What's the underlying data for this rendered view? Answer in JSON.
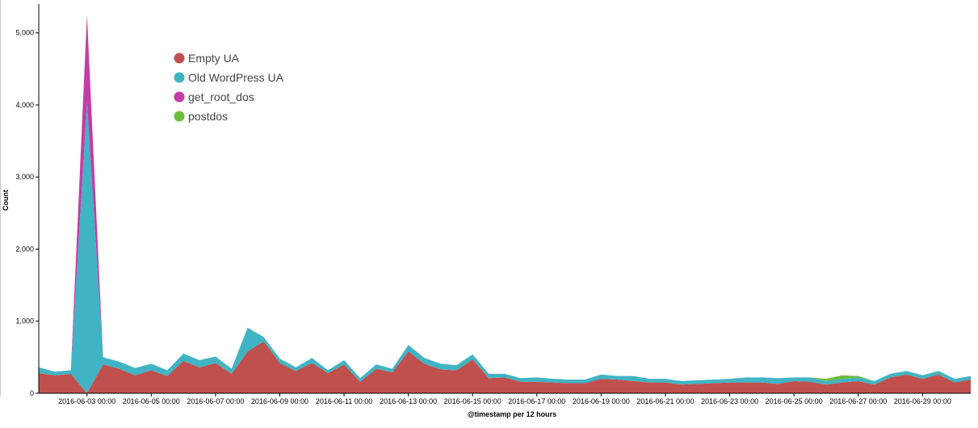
{
  "chart_data": {
    "type": "area",
    "stacked": true,
    "xlabel": "@timestamp per 12 hours",
    "ylabel": "Count",
    "ylim": [
      0,
      5400
    ],
    "grid": false,
    "legend_placement": "top-left",
    "y_ticks": [
      {
        "value": 0,
        "label": "0"
      },
      {
        "value": 1000,
        "label": "1,000"
      },
      {
        "value": 2000,
        "label": "2,000"
      },
      {
        "value": 3000,
        "label": "3,000"
      },
      {
        "value": 4000,
        "label": "4,000"
      },
      {
        "value": 5000,
        "label": "5,000"
      }
    ],
    "x_tick_labels": [
      "2016-06-03 00:00",
      "2016-06-05 00:00",
      "2016-06-07 00:00",
      "2016-06-09 00:00",
      "2016-06-11 00:00",
      "2016-06-13 00:00",
      "2016-06-15 00:00",
      "2016-06-17 00:00",
      "2016-06-19 00:00",
      "2016-06-21 00:00",
      "2016-06-23 00:00",
      "2016-06-25 00:00",
      "2016-06-27 00:00",
      "2016-06-29 00:00"
    ],
    "x": [
      "2016-06-01 12:00",
      "2016-06-02 00:00",
      "2016-06-02 12:00",
      "2016-06-03 00:00",
      "2016-06-03 12:00",
      "2016-06-04 00:00",
      "2016-06-04 12:00",
      "2016-06-05 00:00",
      "2016-06-05 12:00",
      "2016-06-06 00:00",
      "2016-06-06 12:00",
      "2016-06-07 00:00",
      "2016-06-07 12:00",
      "2016-06-08 00:00",
      "2016-06-08 12:00",
      "2016-06-09 00:00",
      "2016-06-09 12:00",
      "2016-06-10 00:00",
      "2016-06-10 12:00",
      "2016-06-11 00:00",
      "2016-06-11 12:00",
      "2016-06-12 00:00",
      "2016-06-12 12:00",
      "2016-06-13 00:00",
      "2016-06-13 12:00",
      "2016-06-14 00:00",
      "2016-06-14 12:00",
      "2016-06-15 00:00",
      "2016-06-15 12:00",
      "2016-06-16 00:00",
      "2016-06-16 12:00",
      "2016-06-17 00:00",
      "2016-06-17 12:00",
      "2016-06-18 00:00",
      "2016-06-18 12:00",
      "2016-06-19 00:00",
      "2016-06-19 12:00",
      "2016-06-20 00:00",
      "2016-06-20 12:00",
      "2016-06-21 00:00",
      "2016-06-21 12:00",
      "2016-06-22 00:00",
      "2016-06-22 12:00",
      "2016-06-23 00:00",
      "2016-06-23 12:00",
      "2016-06-24 00:00",
      "2016-06-24 12:00",
      "2016-06-25 00:00",
      "2016-06-25 12:00",
      "2016-06-26 00:00",
      "2016-06-26 12:00",
      "2016-06-27 00:00",
      "2016-06-27 12:00",
      "2016-06-28 00:00",
      "2016-06-28 12:00",
      "2016-06-29 00:00",
      "2016-06-29 12:00",
      "2016-06-30 00:00",
      "2016-06-30 12:00"
    ],
    "series": [
      {
        "name": "Empty UA",
        "color": "#c0504d",
        "values": [
          280,
          250,
          270,
          0,
          400,
          340,
          250,
          320,
          240,
          450,
          360,
          420,
          270,
          580,
          720,
          420,
          310,
          420,
          280,
          400,
          160,
          340,
          290,
          580,
          410,
          330,
          320,
          470,
          210,
          220,
          160,
          160,
          150,
          140,
          140,
          200,
          190,
          170,
          150,
          150,
          120,
          130,
          140,
          150,
          150,
          150,
          130,
          170,
          160,
          120,
          150,
          170,
          120,
          220,
          260,
          200,
          260,
          150,
          190
        ]
      },
      {
        "name": "Old WordPress UA",
        "color": "#40b4c4",
        "values": [
          80,
          50,
          50,
          4050,
          100,
          100,
          100,
          90,
          80,
          100,
          100,
          90,
          70,
          330,
          60,
          60,
          50,
          70,
          40,
          60,
          50,
          60,
          50,
          90,
          80,
          80,
          70,
          70,
          60,
          50,
          50,
          60,
          50,
          50,
          50,
          60,
          50,
          70,
          50,
          50,
          50,
          50,
          50,
          50,
          70,
          70,
          80,
          50,
          60,
          50,
          50,
          50,
          50,
          50,
          50,
          50,
          50,
          50,
          50
        ]
      },
      {
        "name": "get_root_dos",
        "color": "#c43ca6",
        "values": [
          0,
          0,
          0,
          1200,
          0,
          0,
          0,
          0,
          0,
          0,
          0,
          0,
          0,
          0,
          0,
          0,
          0,
          0,
          0,
          0,
          0,
          0,
          0,
          0,
          0,
          0,
          0,
          0,
          0,
          0,
          0,
          0,
          0,
          0,
          0,
          0,
          0,
          0,
          0,
          0,
          0,
          0,
          0,
          0,
          0,
          0,
          0,
          0,
          0,
          0,
          0,
          0,
          0,
          0,
          0,
          0,
          0,
          0,
          0
        ]
      },
      {
        "name": "postdos",
        "color": "#6cbd3a",
        "values": [
          0,
          0,
          0,
          0,
          0,
          0,
          0,
          0,
          0,
          0,
          0,
          0,
          0,
          0,
          0,
          0,
          0,
          0,
          0,
          0,
          0,
          0,
          0,
          0,
          0,
          0,
          0,
          0,
          0,
          0,
          0,
          0,
          0,
          0,
          0,
          0,
          0,
          0,
          0,
          0,
          0,
          0,
          0,
          0,
          0,
          0,
          0,
          0,
          0,
          30,
          50,
          20,
          0,
          0,
          0,
          0,
          0,
          0,
          0
        ]
      }
    ]
  }
}
